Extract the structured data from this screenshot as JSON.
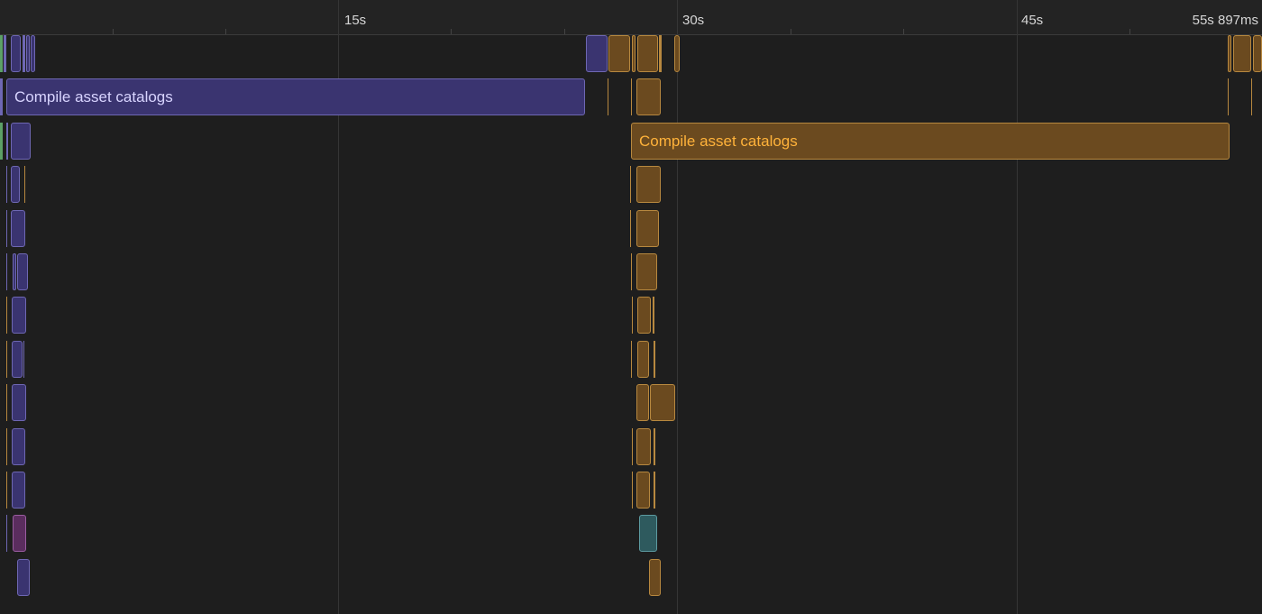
{
  "ruler": {
    "ticks": [
      {
        "label": "15s",
        "seconds": 15
      },
      {
        "label": "30s",
        "seconds": 30
      },
      {
        "label": "45s",
        "seconds": 45
      }
    ],
    "end_label": "55s 897ms"
  },
  "lanes": {
    "wide_task_1": {
      "label": "Compile asset catalogs",
      "color": "#3a3470"
    },
    "wide_task_2": {
      "label": "Compile asset catalogs",
      "color": "#6b4a1f"
    }
  }
}
